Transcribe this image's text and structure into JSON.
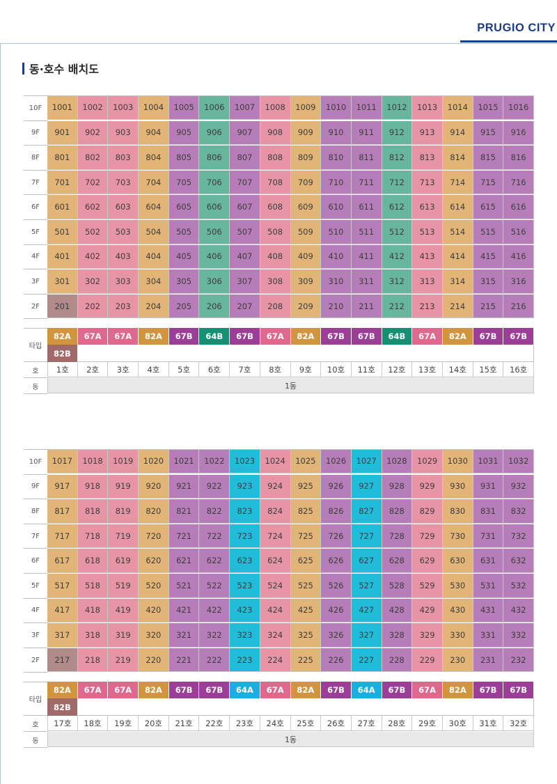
{
  "brand": "PRUGIO CITY",
  "section_title": "동·호수 배치도",
  "labels": {
    "type": "타입",
    "ho": "호",
    "dong": "동"
  },
  "type_colors": {
    "82A": "#d39440",
    "67A": "#e0688c",
    "67B": "#9c3d97",
    "64B": "#149073",
    "64A": "#1baee0",
    "82B": "#a16a6a"
  },
  "blocks": [
    {
      "floors": [
        "10F",
        "9F",
        "8F",
        "7F",
        "6F",
        "5F",
        "4F",
        "3F",
        "2F"
      ],
      "rows": [
        [
          "1001",
          "1002",
          "1003",
          "1004",
          "1005",
          "1006",
          "1007",
          "1008",
          "1009",
          "1010",
          "1011",
          "1012",
          "1013",
          "1014",
          "1015",
          "1016"
        ],
        [
          "901",
          "902",
          "903",
          "904",
          "905",
          "906",
          "907",
          "908",
          "909",
          "910",
          "911",
          "912",
          "913",
          "914",
          "915",
          "916"
        ],
        [
          "801",
          "802",
          "803",
          "804",
          "805",
          "806",
          "807",
          "808",
          "809",
          "810",
          "811",
          "812",
          "813",
          "814",
          "815",
          "816"
        ],
        [
          "701",
          "702",
          "703",
          "704",
          "705",
          "706",
          "707",
          "708",
          "709",
          "710",
          "711",
          "712",
          "713",
          "714",
          "715",
          "716"
        ],
        [
          "601",
          "602",
          "603",
          "604",
          "605",
          "606",
          "607",
          "608",
          "609",
          "610",
          "611",
          "612",
          "613",
          "614",
          "615",
          "616"
        ],
        [
          "501",
          "502",
          "503",
          "504",
          "505",
          "506",
          "507",
          "508",
          "509",
          "510",
          "511",
          "512",
          "513",
          "514",
          "515",
          "516"
        ],
        [
          "401",
          "402",
          "403",
          "404",
          "405",
          "406",
          "407",
          "408",
          "409",
          "410",
          "411",
          "412",
          "413",
          "414",
          "415",
          "416"
        ],
        [
          "301",
          "302",
          "303",
          "304",
          "305",
          "306",
          "307",
          "308",
          "309",
          "310",
          "311",
          "312",
          "313",
          "314",
          "315",
          "316"
        ],
        [
          "201",
          "202",
          "203",
          "204",
          "205",
          "206",
          "207",
          "208",
          "209",
          "210",
          "211",
          "212",
          "213",
          "214",
          "215",
          "216"
        ]
      ],
      "types": [
        "82A",
        "67A",
        "67A",
        "82A",
        "67B",
        "64B",
        "67B",
        "67A",
        "82A",
        "67B",
        "67B",
        "64B",
        "67A",
        "82A",
        "67B",
        "67B"
      ],
      "extra_type": "82B",
      "ho": [
        "1호",
        "2호",
        "3호",
        "4호",
        "5호",
        "6호",
        "7호",
        "8호",
        "9호",
        "10호",
        "11호",
        "12호",
        "13호",
        "14호",
        "15호",
        "16호"
      ],
      "dong": "1동"
    },
    {
      "floors": [
        "10F",
        "9F",
        "8F",
        "7F",
        "6F",
        "5F",
        "4F",
        "3F",
        "2F"
      ],
      "rows": [
        [
          "1017",
          "1018",
          "1019",
          "1020",
          "1021",
          "1022",
          "1023",
          "1024",
          "1025",
          "1026",
          "1027",
          "1028",
          "1029",
          "1030",
          "1031",
          "1032"
        ],
        [
          "917",
          "918",
          "919",
          "920",
          "921",
          "922",
          "923",
          "924",
          "925",
          "926",
          "927",
          "928",
          "929",
          "930",
          "931",
          "932"
        ],
        [
          "817",
          "818",
          "819",
          "820",
          "821",
          "822",
          "823",
          "824",
          "825",
          "826",
          "827",
          "828",
          "829",
          "830",
          "831",
          "832"
        ],
        [
          "717",
          "718",
          "719",
          "720",
          "721",
          "722",
          "723",
          "724",
          "725",
          "726",
          "727",
          "728",
          "729",
          "730",
          "731",
          "732"
        ],
        [
          "617",
          "618",
          "619",
          "620",
          "621",
          "622",
          "623",
          "624",
          "625",
          "626",
          "627",
          "628",
          "629",
          "630",
          "631",
          "632"
        ],
        [
          "517",
          "518",
          "519",
          "520",
          "521",
          "522",
          "523",
          "524",
          "525",
          "526",
          "527",
          "528",
          "529",
          "530",
          "531",
          "532"
        ],
        [
          "417",
          "418",
          "419",
          "420",
          "421",
          "422",
          "423",
          "424",
          "425",
          "426",
          "427",
          "428",
          "429",
          "430",
          "431",
          "432"
        ],
        [
          "317",
          "318",
          "319",
          "320",
          "321",
          "322",
          "323",
          "324",
          "325",
          "326",
          "327",
          "328",
          "329",
          "330",
          "331",
          "332"
        ],
        [
          "217",
          "218",
          "219",
          "220",
          "221",
          "222",
          "223",
          "224",
          "225",
          "226",
          "227",
          "228",
          "229",
          "230",
          "231",
          "232"
        ]
      ],
      "types": [
        "82A",
        "67A",
        "67A",
        "82A",
        "67B",
        "67B",
        "64A",
        "67A",
        "82A",
        "67B",
        "64A",
        "67B",
        "67A",
        "82A",
        "67B",
        "67B"
      ],
      "extra_type": "82B",
      "ho": [
        "17호",
        "18호",
        "19호",
        "20호",
        "21호",
        "22호",
        "23호",
        "24호",
        "25호",
        "26호",
        "27호",
        "28호",
        "29호",
        "30호",
        "31호",
        "32호"
      ],
      "dong": "1동"
    }
  ]
}
